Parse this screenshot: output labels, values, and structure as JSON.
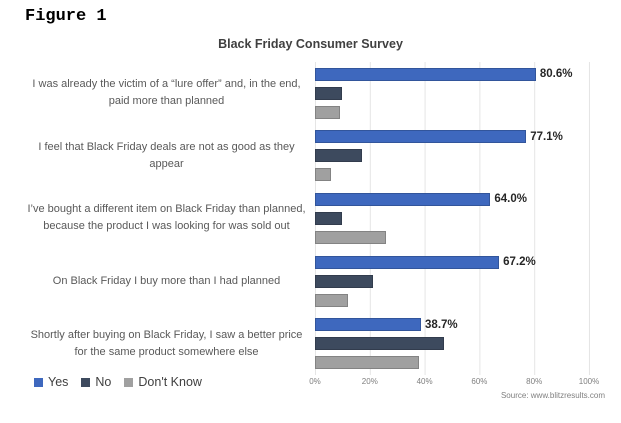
{
  "figure_label": "Figure 1",
  "source_note": "Source: www.blitzresults.com",
  "chart_data": {
    "type": "bar",
    "orientation": "horizontal",
    "title": "Black Friday Consumer Survey",
    "categories": [
      "I was already the victim of a “lure offer” and, in the end, paid more than planned",
      "I feel that Black Friday deals are not as good as they appear",
      "I’ve bought a different item on Black Friday than planned, because the product I was looking for was sold out",
      "On Black Friday I buy more than I had planned",
      "Shortly after buying on Black Friday, I saw a better price for the same product somewhere else"
    ],
    "series": [
      {
        "name": "Yes",
        "color": "#3e68be",
        "values": [
          80.6,
          77.1,
          64.0,
          67.2,
          38.7
        ],
        "data_labels": [
          "80.6%",
          "77.1%",
          "64.0%",
          "67.2%",
          "38.7%"
        ]
      },
      {
        "name": "No",
        "color": "#3d4a5e",
        "values": [
          10,
          17,
          10,
          21,
          47
        ]
      },
      {
        "name": "Don't Know",
        "color": "#a0a0a0",
        "values": [
          9,
          6,
          26,
          12,
          38
        ]
      }
    ],
    "xlim": [
      0,
      100
    ],
    "x_tick_labels": [
      "0%",
      "20%",
      "40%",
      "60%",
      "80%",
      "100%"
    ],
    "gridlines": "vertical",
    "legend_position": "bottom-left"
  }
}
